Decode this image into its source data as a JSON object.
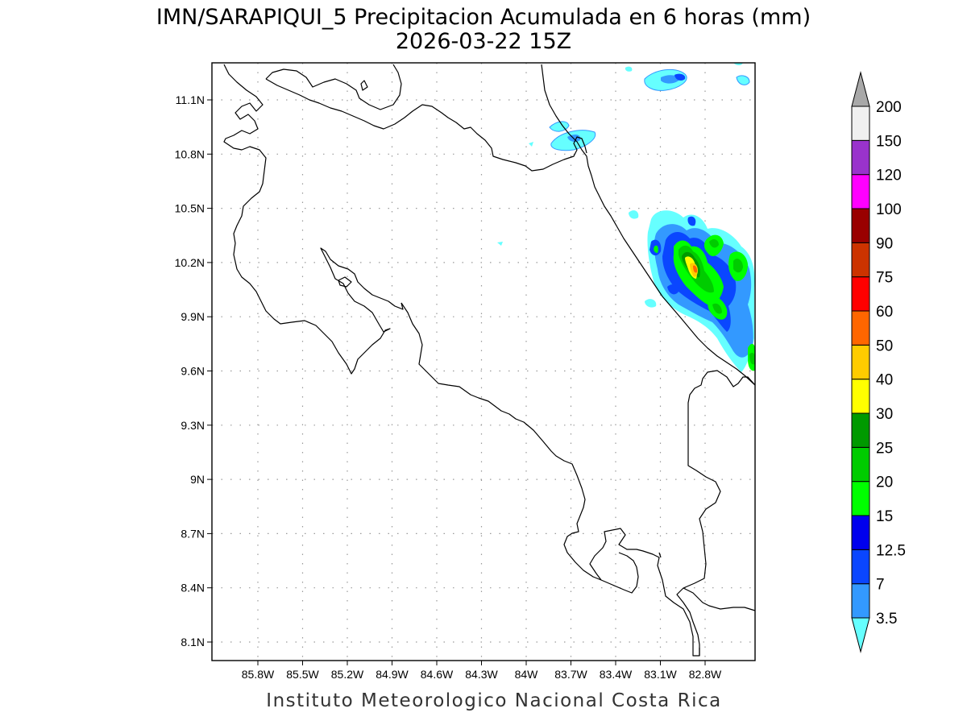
{
  "header": {
    "title_line1": "IMN/SARAPIQUI_5 Precipitacion Acumulada en 6 horas (mm)",
    "title_line2": "2026-03-22 15Z"
  },
  "footer": {
    "credit": "Instituto Meteorologico Nacional Costa Rica"
  },
  "map": {
    "region": "Costa Rica",
    "lon_range": [
      -86.0,
      -82.4
    ],
    "lat_range": [
      7.9,
      11.3
    ],
    "grid": "dotted",
    "x_ticks": [
      "85.8W",
      "85.5W",
      "85.2W",
      "84.9W",
      "84.6W",
      "84.3W",
      "84W",
      "83.7W",
      "83.4W",
      "83.1W",
      "82.8W"
    ],
    "y_ticks": [
      "11.1N",
      "10.8N",
      "10.5N",
      "10.2N",
      "9.9N",
      "9.6N",
      "9.3N",
      "9N",
      "8.7N",
      "8.4N",
      "8.1N"
    ]
  },
  "colorbar": {
    "levels": [
      "3.5",
      "7",
      "12.5",
      "15",
      "20",
      "25",
      "30",
      "40",
      "50",
      "60",
      "75",
      "90",
      "100",
      "120",
      "150",
      "200"
    ],
    "colors": [
      "#66ffff",
      "#3399ff",
      "#0a46ff",
      "#0000ee",
      "#00ff00",
      "#00cc00",
      "#009900",
      "#ffff00",
      "#ffcc00",
      "#ff6600",
      "#ff0000",
      "#cc3300",
      "#990000",
      "#ff00ff",
      "#9933cc",
      "#f0f0f0",
      "#a8a8a8"
    ]
  }
}
